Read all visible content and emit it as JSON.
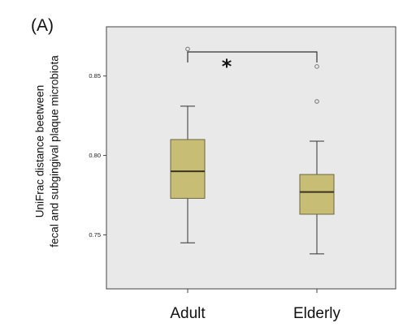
{
  "panel_label": "(A)",
  "chart_data": {
    "type": "box",
    "categories": [
      "Adult",
      "Elderly"
    ],
    "ylabel_lines": [
      "UniFrac distance beetween",
      "fecal and subgingival plaque microbiota"
    ],
    "yticks": [
      "0.75",
      "0.80",
      "0.85"
    ],
    "ylim": [
      0.716,
      0.881
    ],
    "series": [
      {
        "category": "Adult",
        "whisker_low": 0.745,
        "q1": 0.773,
        "median": 0.79,
        "q3": 0.81,
        "whisker_high": 0.831,
        "outliers": [
          0.867
        ]
      },
      {
        "category": "Elderly",
        "whisker_low": 0.738,
        "q1": 0.763,
        "median": 0.777,
        "q3": 0.788,
        "whisker_high": 0.809,
        "outliers": [
          0.834,
          0.856
        ]
      }
    ],
    "significance": {
      "between": [
        "Adult",
        "Elderly"
      ],
      "label": "*"
    },
    "colors": {
      "box_fill": "#c8bd74",
      "box_stroke": "#6b6640",
      "plot_bg": "#e9e9e9",
      "frame": "#444444",
      "outlier": "#777777"
    },
    "grid": false
  }
}
